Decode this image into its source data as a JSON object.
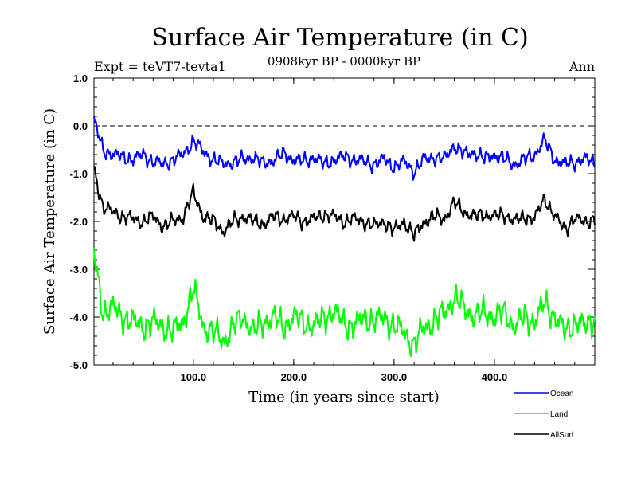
{
  "chart_data": {
    "type": "line",
    "title": "Surface Air Temperature (in C)",
    "subtitle_left": "Expt = teVT7-tevta1",
    "subtitle_center": "0908kyr BP - 0000kyr BP",
    "subtitle_right": "Ann",
    "xlabel": "Time (in years since start)",
    "ylabel": "Surface Air Temperature (in C)",
    "xlim": [
      1,
      500
    ],
    "ylim": [
      -5.0,
      1.0
    ],
    "xticks": [
      100,
      200,
      300,
      400
    ],
    "xtick_labels": [
      "100.0",
      "200.0",
      "300.0",
      "400.0"
    ],
    "yticks": [
      1.0,
      0.0,
      -1.0,
      -2.0,
      -3.0,
      -4.0,
      -5.0
    ],
    "ytick_labels": [
      "1.0",
      "0.0",
      "-1.0",
      "-2.0",
      "-3.0",
      "-4.0",
      "-5.0"
    ],
    "reference_line": 0.0,
    "series": [
      {
        "name": "Ocean",
        "color": "#0000ff",
        "x": [
          1,
          10,
          20,
          30,
          40,
          50,
          60,
          70,
          80,
          90,
          100,
          110,
          120,
          130,
          140,
          150,
          160,
          170,
          180,
          190,
          200,
          210,
          220,
          230,
          240,
          250,
          260,
          270,
          280,
          290,
          300,
          310,
          320,
          330,
          340,
          350,
          360,
          370,
          380,
          390,
          400,
          410,
          420,
          430,
          440,
          450,
          460,
          470,
          480,
          490,
          500
        ],
        "values": [
          0.1,
          -0.5,
          -0.6,
          -0.65,
          -0.7,
          -0.6,
          -0.75,
          -0.8,
          -0.7,
          -0.6,
          -0.3,
          -0.55,
          -0.7,
          -0.8,
          -0.75,
          -0.7,
          -0.65,
          -0.8,
          -0.7,
          -0.6,
          -0.7,
          -0.75,
          -0.65,
          -0.8,
          -0.7,
          -0.65,
          -0.7,
          -0.75,
          -0.8,
          -0.7,
          -0.85,
          -0.75,
          -0.95,
          -0.7,
          -0.65,
          -0.7,
          -0.4,
          -0.6,
          -0.55,
          -0.7,
          -0.6,
          -0.7,
          -0.8,
          -0.7,
          -0.6,
          -0.3,
          -0.7,
          -0.8,
          -0.75,
          -0.7,
          -0.75
        ]
      },
      {
        "name": "Land",
        "color": "#00ff00",
        "x": [
          1,
          10,
          20,
          30,
          40,
          50,
          60,
          70,
          80,
          90,
          100,
          110,
          120,
          130,
          140,
          150,
          160,
          170,
          180,
          190,
          200,
          210,
          220,
          230,
          240,
          250,
          260,
          270,
          280,
          290,
          300,
          310,
          320,
          330,
          340,
          350,
          360,
          370,
          380,
          390,
          400,
          410,
          420,
          430,
          440,
          450,
          460,
          470,
          480,
          490,
          500
        ],
        "values": [
          -2.7,
          -3.9,
          -3.8,
          -4.0,
          -4.1,
          -4.2,
          -4.1,
          -4.2,
          -4.3,
          -4.1,
          -3.4,
          -4.2,
          -4.3,
          -4.5,
          -4.2,
          -4.0,
          -4.3,
          -4.1,
          -4.0,
          -4.2,
          -4.0,
          -4.1,
          -4.2,
          -4.0,
          -3.9,
          -4.1,
          -4.2,
          -4.0,
          -4.1,
          -4.0,
          -4.2,
          -4.3,
          -4.6,
          -4.2,
          -4.1,
          -3.9,
          -3.6,
          -3.8,
          -4.0,
          -3.9,
          -4.0,
          -3.9,
          -4.2,
          -4.0,
          -4.1,
          -3.7,
          -4.0,
          -4.3,
          -4.1,
          -4.2,
          -4.0
        ]
      },
      {
        "name": "AllSurf",
        "color": "#000000",
        "x": [
          1,
          10,
          20,
          30,
          40,
          50,
          60,
          70,
          80,
          90,
          100,
          110,
          120,
          130,
          140,
          150,
          160,
          170,
          180,
          190,
          200,
          210,
          220,
          230,
          240,
          250,
          260,
          270,
          280,
          290,
          300,
          310,
          320,
          330,
          340,
          350,
          360,
          370,
          380,
          390,
          400,
          410,
          420,
          430,
          440,
          450,
          460,
          470,
          480,
          490,
          500
        ],
        "values": [
          -0.9,
          -1.7,
          -1.8,
          -1.9,
          -1.95,
          -2.0,
          -1.9,
          -2.1,
          -2.0,
          -1.9,
          -1.4,
          -1.9,
          -2.0,
          -2.2,
          -2.0,
          -1.9,
          -2.0,
          -2.05,
          -1.9,
          -1.95,
          -1.9,
          -2.0,
          -1.95,
          -1.85,
          -1.9,
          -2.0,
          -1.95,
          -2.0,
          -2.1,
          -2.0,
          -2.2,
          -2.0,
          -2.3,
          -2.0,
          -1.9,
          -1.95,
          -1.6,
          -1.8,
          -1.9,
          -1.85,
          -1.9,
          -1.85,
          -2.0,
          -1.9,
          -1.95,
          -1.5,
          -1.9,
          -2.15,
          -1.95,
          -2.0,
          -1.95
        ]
      }
    ],
    "legend_position": "bottom-right"
  }
}
